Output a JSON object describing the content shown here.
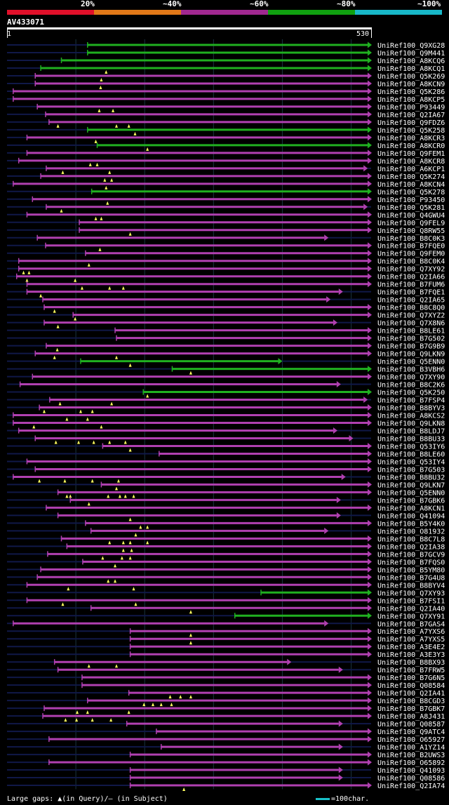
{
  "legend": [
    {
      "label": "20%",
      "color": "#e0102a"
    },
    {
      "label": "~40%",
      "color": "#e07818"
    },
    {
      "label": "~60%",
      "color": "#a02890"
    },
    {
      "label": "~80%",
      "color": "#10a010"
    },
    {
      "label": "~100%",
      "color": "#18b8c8"
    }
  ],
  "query": {
    "name": "AV433071",
    "start": "1",
    "end": "530"
  },
  "colors": {
    "magenta": "#b040b0",
    "green": "#20b020",
    "navy": "#101848",
    "grid": "#1a3340"
  },
  "hits": [
    {
      "name": "UniRef100_Q9XG28",
      "start": 118,
      "end": 530,
      "color": "green",
      "gaps": []
    },
    {
      "name": "UniRef100_Q9M441",
      "start": 118,
      "end": 530,
      "color": "green",
      "gaps": []
    },
    {
      "name": "UniRef100_A8KCQ6",
      "start": 80,
      "end": 530,
      "color": "green",
      "gaps": []
    },
    {
      "name": "UniRef100_A8KCQ1",
      "start": 50,
      "end": 530,
      "color": "green",
      "gaps": [
        145
      ]
    },
    {
      "name": "UniRef100_Q5K269",
      "start": 42,
      "end": 530,
      "color": "magenta",
      "gaps": [
        138
      ]
    },
    {
      "name": "UniRef100_A8KCN9",
      "start": 42,
      "end": 530,
      "color": "magenta",
      "gaps": [
        137
      ]
    },
    {
      "name": "UniRef100_Q5K286",
      "start": 10,
      "end": 530,
      "color": "magenta",
      "gaps": []
    },
    {
      "name": "UniRef100_A8KCP5",
      "start": 10,
      "end": 530,
      "color": "magenta",
      "gaps": []
    },
    {
      "name": "UniRef100_P93449",
      "start": 45,
      "end": 530,
      "color": "magenta",
      "gaps": [
        135,
        155
      ]
    },
    {
      "name": "UniRef100_Q2IA67",
      "start": 57,
      "end": 530,
      "color": "magenta",
      "gaps": []
    },
    {
      "name": "UniRef100_Q9FDZ6",
      "start": 62,
      "end": 530,
      "color": "magenta",
      "gaps": [
        75,
        160,
        178
      ]
    },
    {
      "name": "UniRef100_Q5K258",
      "start": 118,
      "end": 530,
      "color": "green",
      "gaps": [
        187
      ]
    },
    {
      "name": "UniRef100_A8KCR3",
      "start": 30,
      "end": 530,
      "color": "magenta",
      "gaps": [
        130
      ]
    },
    {
      "name": "UniRef100_A8KCR0",
      "start": 132,
      "end": 530,
      "color": "green",
      "gaps": [
        205
      ]
    },
    {
      "name": "UniRef100_Q9FEM1",
      "start": 30,
      "end": 530,
      "color": "magenta",
      "gaps": []
    },
    {
      "name": "UniRef100_A8KCR8",
      "start": 18,
      "end": 530,
      "color": "magenta",
      "gaps": [
        122,
        132
      ]
    },
    {
      "name": "UniRef100_A6KCP1",
      "start": 58,
      "end": 524,
      "color": "magenta",
      "gaps": [
        82,
        150
      ]
    },
    {
      "name": "UniRef100_Q5K274",
      "start": 50,
      "end": 530,
      "color": "magenta",
      "gaps": [
        143,
        153
      ]
    },
    {
      "name": "UniRef100_A8KCN4",
      "start": 10,
      "end": 530,
      "color": "magenta",
      "gaps": [
        145
      ]
    },
    {
      "name": "UniRef100_Q5K278",
      "start": 124,
      "end": 530,
      "color": "green",
      "gaps": []
    },
    {
      "name": "UniRef100_P93450",
      "start": 38,
      "end": 530,
      "color": "magenta",
      "gaps": [
        147
      ]
    },
    {
      "name": "UniRef100_Q5K281",
      "start": 58,
      "end": 524,
      "color": "magenta",
      "gaps": [
        80
      ]
    },
    {
      "name": "UniRef100_Q4GWU4",
      "start": 30,
      "end": 530,
      "color": "magenta",
      "gaps": [
        130,
        138
      ]
    },
    {
      "name": "UniRef100_Q9FEL9",
      "start": 106,
      "end": 530,
      "color": "magenta",
      "gaps": []
    },
    {
      "name": "UniRef100_Q8RW55",
      "start": 106,
      "end": 530,
      "color": "magenta",
      "gaps": [
        180
      ]
    },
    {
      "name": "UniRef100_B8C0K3",
      "start": 45,
      "end": 467,
      "color": "magenta",
      "gaps": []
    },
    {
      "name": "UniRef100_B7FQE0",
      "start": 57,
      "end": 530,
      "color": "magenta",
      "gaps": [
        136
      ]
    },
    {
      "name": "UniRef100_Q9FEM0",
      "start": 115,
      "end": 530,
      "color": "magenta",
      "gaps": []
    },
    {
      "name": "UniRef100_B8C0K4",
      "start": 18,
      "end": 530,
      "color": "magenta",
      "gaps": [
        120
      ]
    },
    {
      "name": "UniRef100_Q7XY92",
      "start": 18,
      "end": 530,
      "color": "magenta",
      "gaps": [
        25,
        33
      ]
    },
    {
      "name": "UniRef100_Q2IA66",
      "start": 15,
      "end": 530,
      "color": "magenta",
      "gaps": [
        30,
        100
      ]
    },
    {
      "name": "UniRef100_B7FUM6",
      "start": 30,
      "end": 530,
      "color": "magenta",
      "gaps": [
        110,
        150,
        170
      ]
    },
    {
      "name": "UniRef100_B7FQE1",
      "start": 30,
      "end": 488,
      "color": "magenta",
      "gaps": [
        50
      ]
    },
    {
      "name": "UniRef100_Q2IA65",
      "start": 53,
      "end": 470,
      "color": "magenta",
      "gaps": []
    },
    {
      "name": "UniRef100_B8C8Q0",
      "start": 55,
      "end": 530,
      "color": "magenta",
      "gaps": [
        70
      ]
    },
    {
      "name": "UniRef100_Q7XYZ2",
      "start": 97,
      "end": 530,
      "color": "magenta",
      "gaps": [
        100
      ]
    },
    {
      "name": "UniRef100_Q7X8N6",
      "start": 55,
      "end": 480,
      "color": "magenta",
      "gaps": [
        75
      ]
    },
    {
      "name": "UniRef100_B8LE61",
      "start": 158,
      "end": 530,
      "color": "magenta",
      "gaps": []
    },
    {
      "name": "UniRef100_B7G502",
      "start": 160,
      "end": 530,
      "color": "magenta",
      "gaps": []
    },
    {
      "name": "UniRef100_B7G9B9",
      "start": 58,
      "end": 530,
      "color": "magenta",
      "gaps": [
        74
      ]
    },
    {
      "name": "UniRef100_Q9LKN9",
      "start": 42,
      "end": 530,
      "color": "magenta",
      "gaps": [
        70,
        160
      ]
    },
    {
      "name": "UniRef100_Q5ENN0",
      "start": 108,
      "end": 400,
      "color": "green",
      "gaps": [
        180
      ]
    },
    {
      "name": "UniRef100_B3VBH6",
      "start": 241,
      "end": 530,
      "color": "green",
      "gaps": [
        268
      ]
    },
    {
      "name": "UniRef100_Q7XY90",
      "start": 38,
      "end": 530,
      "color": "magenta",
      "gaps": []
    },
    {
      "name": "UniRef100_B8C2K6",
      "start": 20,
      "end": 485,
      "color": "magenta",
      "gaps": []
    },
    {
      "name": "UniRef100_Q5K250",
      "start": 199,
      "end": 530,
      "color": "green",
      "gaps": [
        205
      ]
    },
    {
      "name": "UniRef100_B7FSP4",
      "start": 63,
      "end": 524,
      "color": "magenta",
      "gaps": [
        78,
        153
      ]
    },
    {
      "name": "UniRef100_B8BYV3",
      "start": 48,
      "end": 530,
      "color": "magenta",
      "gaps": [
        55,
        108,
        125
      ]
    },
    {
      "name": "UniRef100_A8KCS2",
      "start": 10,
      "end": 530,
      "color": "magenta",
      "gaps": [
        88,
        118
      ]
    },
    {
      "name": "UniRef100_Q9LKN8",
      "start": 10,
      "end": 530,
      "color": "magenta",
      "gaps": [
        40,
        138
      ]
    },
    {
      "name": "UniRef100_B8LDJ7",
      "start": 18,
      "end": 480,
      "color": "magenta",
      "gaps": []
    },
    {
      "name": "UniRef100_B8BU33",
      "start": 42,
      "end": 503,
      "color": "magenta",
      "gaps": [
        72,
        105,
        127,
        150,
        173
      ]
    },
    {
      "name": "UniRef100_Q53IY6",
      "start": 140,
      "end": 530,
      "color": "magenta",
      "gaps": [
        180
      ]
    },
    {
      "name": "UniRef100_B8LE60",
      "start": 222,
      "end": 530,
      "color": "magenta",
      "gaps": []
    },
    {
      "name": "UniRef100_Q53IY4",
      "start": 30,
      "end": 530,
      "color": "magenta",
      "gaps": []
    },
    {
      "name": "UniRef100_B7G503",
      "start": 42,
      "end": 530,
      "color": "magenta",
      "gaps": []
    },
    {
      "name": "UniRef100_B8BU32",
      "start": 10,
      "end": 492,
      "color": "magenta",
      "gaps": [
        48,
        85,
        125,
        163
      ]
    },
    {
      "name": "UniRef100_Q9LKN7",
      "start": 138,
      "end": 530,
      "color": "magenta",
      "gaps": [
        160
      ]
    },
    {
      "name": "UniRef100_Q5ENN0",
      "start": 75,
      "end": 530,
      "color": "magenta",
      "gaps": [
        88,
        93,
        148,
        165,
        173,
        185
      ]
    },
    {
      "name": "UniRef100_B7GBK6",
      "start": 93,
      "end": 485,
      "color": "magenta",
      "gaps": [
        120
      ]
    },
    {
      "name": "UniRef100_A8KCN1",
      "start": 58,
      "end": 530,
      "color": "magenta",
      "gaps": []
    },
    {
      "name": "UniRef100_Q41094",
      "start": 75,
      "end": 485,
      "color": "magenta",
      "gaps": [
        180
      ]
    },
    {
      "name": "UniRef100_B5Y4K0",
      "start": 115,
      "end": 530,
      "color": "magenta",
      "gaps": [
        195,
        205
      ]
    },
    {
      "name": "UniRef100_O81932",
      "start": 123,
      "end": 467,
      "color": "magenta",
      "gaps": [
        188
      ]
    },
    {
      "name": "UniRef100_B8C7L8",
      "start": 80,
      "end": 530,
      "color": "magenta",
      "gaps": [
        150,
        170,
        180,
        205
      ]
    },
    {
      "name": "UniRef100_Q2IA38",
      "start": 88,
      "end": 530,
      "color": "magenta",
      "gaps": [
        170,
        182
      ]
    },
    {
      "name": "UniRef100_B7GCV9",
      "start": 60,
      "end": 530,
      "color": "magenta",
      "gaps": [
        140,
        168,
        180
      ]
    },
    {
      "name": "UniRef100_B7FQS0",
      "start": 111,
      "end": 530,
      "color": "magenta",
      "gaps": [
        158
      ]
    },
    {
      "name": "UniRef100_B5YM80",
      "start": 50,
      "end": 530,
      "color": "magenta",
      "gaps": []
    },
    {
      "name": "UniRef100_B7G4U8",
      "start": 45,
      "end": 530,
      "color": "magenta",
      "gaps": [
        148,
        158
      ]
    },
    {
      "name": "UniRef100_B8BYV4",
      "start": 30,
      "end": 530,
      "color": "magenta",
      "gaps": [
        90,
        185
      ]
    },
    {
      "name": "UniRef100_Q7XY93",
      "start": 370,
      "end": 530,
      "color": "green",
      "gaps": []
    },
    {
      "name": "UniRef100_B7FSI1",
      "start": 30,
      "end": 530,
      "color": "magenta",
      "gaps": [
        82,
        188
      ]
    },
    {
      "name": "UniRef100_Q2IA40",
      "start": 123,
      "end": 530,
      "color": "magenta",
      "gaps": [
        268
      ]
    },
    {
      "name": "UniRef100_Q7XY91",
      "start": 332,
      "end": 530,
      "color": "green",
      "gaps": []
    },
    {
      "name": "UniRef100_B7GAS4",
      "start": 10,
      "end": 467,
      "color": "magenta",
      "gaps": []
    },
    {
      "name": "UniRef100_A7YXS6",
      "start": 180,
      "end": 530,
      "color": "magenta",
      "gaps": [
        268
      ]
    },
    {
      "name": "UniRef100_A7YXS5",
      "start": 180,
      "end": 530,
      "color": "magenta",
      "gaps": [
        268
      ]
    },
    {
      "name": "UniRef100_A3E4E2",
      "start": 180,
      "end": 530,
      "color": "magenta",
      "gaps": []
    },
    {
      "name": "UniRef100_A3E3Y3",
      "start": 180,
      "end": 530,
      "color": "magenta",
      "gaps": []
    },
    {
      "name": "UniRef100_B8BX93",
      "start": 70,
      "end": 413,
      "color": "magenta",
      "gaps": [
        120,
        160
      ]
    },
    {
      "name": "UniRef100_B7FRW5",
      "start": 75,
      "end": 488,
      "color": "magenta",
      "gaps": []
    },
    {
      "name": "UniRef100_B7G6N5",
      "start": 110,
      "end": 530,
      "color": "magenta",
      "gaps": []
    },
    {
      "name": "UniRef100_Q08584",
      "start": 110,
      "end": 530,
      "color": "magenta",
      "gaps": []
    },
    {
      "name": "UniRef100_Q2IA41",
      "start": 178,
      "end": 530,
      "color": "magenta",
      "gaps": [
        238,
        253,
        268
      ]
    },
    {
      "name": "UniRef100_B8CGD3",
      "start": 118,
      "end": 530,
      "color": "magenta",
      "gaps": [
        200,
        213,
        225,
        240
      ]
    },
    {
      "name": "UniRef100_B7GBK7",
      "start": 55,
      "end": 530,
      "color": "magenta",
      "gaps": [
        103,
        118,
        178
      ]
    },
    {
      "name": "UniRef100_A8J431",
      "start": 53,
      "end": 530,
      "color": "magenta",
      "gaps": [
        86,
        102,
        125,
        152
      ]
    },
    {
      "name": "UniRef100_Q08587",
      "start": 175,
      "end": 488,
      "color": "magenta",
      "gaps": []
    },
    {
      "name": "UniRef100_Q9ATC4",
      "start": 218,
      "end": 530,
      "color": "magenta",
      "gaps": []
    },
    {
      "name": "UniRef100_O65927",
      "start": 62,
      "end": 530,
      "color": "magenta",
      "gaps": []
    },
    {
      "name": "UniRef100_A1YZ14",
      "start": 225,
      "end": 488,
      "color": "magenta",
      "gaps": []
    },
    {
      "name": "UniRef100_B2UWS3",
      "start": 180,
      "end": 530,
      "color": "magenta",
      "gaps": []
    },
    {
      "name": "UniRef100_O65892",
      "start": 62,
      "end": 530,
      "color": "magenta",
      "gaps": []
    },
    {
      "name": "UniRef100_Q41093",
      "start": 180,
      "end": 488,
      "color": "magenta",
      "gaps": []
    },
    {
      "name": "UniRef100_Q08586",
      "start": 180,
      "end": 488,
      "color": "magenta",
      "gaps": []
    },
    {
      "name": "UniRef100_Q2IA74",
      "start": 180,
      "end": 530,
      "color": "magenta",
      "gaps": [
        258
      ]
    }
  ],
  "footer": {
    "gaps_text": "Large gaps: ▲(in Query)/– (in Subject)",
    "scale_text": "=100char."
  }
}
